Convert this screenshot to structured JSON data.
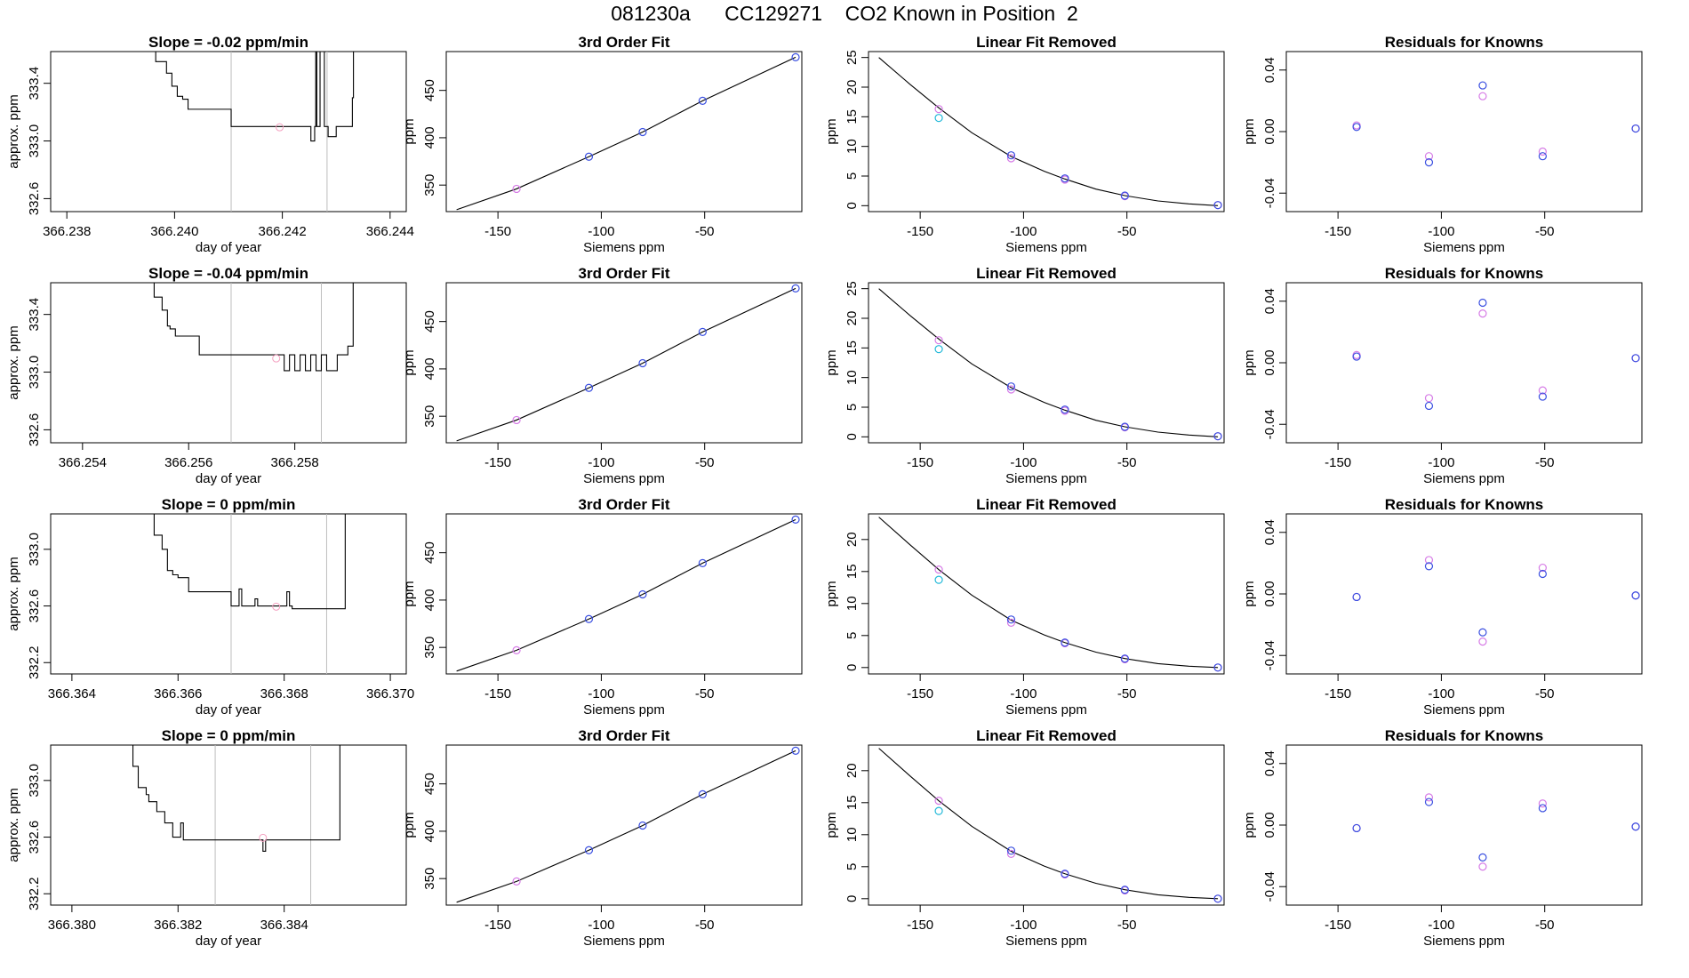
{
  "title": "081230a      CC129271    CO2 Known in Position  2",
  "colors": {
    "line": "#000000",
    "point_blue": "#3a4fe0",
    "point_cyan": "#20b8d8",
    "point_magenta": "#d67be6",
    "point_pink": "#f4a0c0",
    "vline": "#bdbdbd"
  },
  "chart_data": [
    {
      "type": "line",
      "title": "Slope =  -0.02  ppm/min",
      "xlabel": "day of year",
      "ylabel": "approx. ppm",
      "xlim": [
        366.2377,
        366.2443
      ],
      "ylim": [
        332.51,
        333.62
      ],
      "xticks": [
        "366.238",
        "366.240",
        "366.242",
        "366.244"
      ],
      "yticks": [
        "332.6",
        "333.0",
        "333.4"
      ],
      "vlines": [
        366.24105,
        366.24283
      ],
      "point": {
        "x": 366.24195,
        "y": 333.095
      },
      "x": [
        366.23958,
        366.23965,
        366.23985,
        366.23995,
        366.24005,
        366.24015,
        366.24025,
        366.24035,
        366.2405,
        366.24065,
        366.24085,
        366.24105,
        366.2412,
        366.2416,
        366.242,
        366.24225,
        366.2424,
        366.24245,
        366.24253,
        366.24258,
        366.2426,
        366.24262,
        366.24264,
        366.2427,
        366.24278,
        366.24285,
        366.243,
        366.2431,
        366.24325,
        366.2433,
        366.24332
      ],
      "y": [
        333.62,
        333.55,
        333.47,
        333.38,
        333.31,
        333.29,
        333.22,
        333.22,
        333.22,
        333.22,
        333.22,
        333.1,
        333.1,
        333.1,
        333.1,
        333.1,
        333.1,
        333.1,
        333.0,
        333.0,
        333.1,
        333.62,
        333.1,
        333.62,
        333.1,
        333.03,
        333.1,
        333.1,
        333.1,
        333.3,
        333.62
      ]
    },
    {
      "type": "line",
      "title": "Slope =  -0.04  ppm/min",
      "xlabel": "day of year",
      "ylabel": "approx. ppm",
      "xlim": [
        366.2534,
        366.2601
      ],
      "ylim": [
        332.51,
        333.62
      ],
      "xticks": [
        "366.254",
        "366.256",
        "366.258"
      ],
      "yticks": [
        "332.6",
        "333.0",
        "333.4"
      ],
      "vlines": [
        366.2568,
        366.2585
      ],
      "point": {
        "x": 366.25765,
        "y": 333.095
      },
      "x": [
        366.25525,
        366.25535,
        366.2555,
        366.2556,
        366.25565,
        366.25575,
        366.2559,
        366.25605,
        366.2562,
        366.2566,
        366.257,
        366.25765,
        366.2578,
        366.2579,
        366.258,
        366.2581,
        366.2582,
        366.2583,
        366.2584,
        366.2585,
        366.2586,
        366.2587,
        366.2588,
        366.2589,
        366.259,
        366.2591
      ],
      "y": [
        333.62,
        333.52,
        333.43,
        333.32,
        333.3,
        333.25,
        333.25,
        333.25,
        333.12,
        333.12,
        333.12,
        333.12,
        333.01,
        333.12,
        333.01,
        333.12,
        333.01,
        333.12,
        333.01,
        333.12,
        333.01,
        333.01,
        333.12,
        333.12,
        333.18,
        333.62
      ]
    },
    {
      "type": "line",
      "title": "Slope =  0  ppm/min",
      "xlabel": "day of year",
      "ylabel": "approx. ppm",
      "xlim": [
        366.3636,
        366.3703
      ],
      "ylim": [
        332.12,
        333.25
      ],
      "xticks": [
        "366.364",
        "366.366",
        "366.368",
        "366.370"
      ],
      "yticks": [
        "332.2",
        "332.6",
        "333.0"
      ],
      "vlines": [
        366.367,
        366.3688
      ],
      "point": {
        "x": 366.36785,
        "y": 332.595
      },
      "x": [
        366.36545,
        366.36555,
        366.3657,
        366.3658,
        366.3659,
        366.366,
        366.3662,
        366.3664,
        366.3666,
        366.367,
        366.3671,
        366.36715,
        366.3672,
        366.3674,
        366.36745,
        366.3675,
        366.368,
        366.36805,
        366.3681,
        366.36815,
        366.3685,
        366.369,
        366.3691,
        366.36915
      ],
      "y": [
        333.25,
        333.1,
        333.0,
        332.85,
        332.82,
        332.8,
        332.7,
        332.7,
        332.7,
        332.6,
        332.6,
        332.72,
        332.6,
        332.6,
        332.65,
        332.6,
        332.6,
        332.7,
        332.6,
        332.58,
        332.58,
        332.58,
        332.58,
        333.25
      ]
    },
    {
      "type": "line",
      "title": "Slope =  0  ppm/min",
      "xlabel": "day of year",
      "ylabel": "approx. ppm",
      "xlim": [
        366.3796,
        366.3863
      ],
      "ylim": [
        332.12,
        333.25
      ],
      "xticks": [
        "366.380",
        "366.382",
        "366.384"
      ],
      "yticks": [
        "332.2",
        "332.6",
        "333.0"
      ],
      "vlines": [
        366.3827,
        366.3845
      ],
      "point": {
        "x": 366.3836,
        "y": 332.595
      },
      "x": [
        366.38108,
        366.38115,
        366.38125,
        366.3814,
        366.38145,
        366.3816,
        366.38175,
        366.3819,
        366.382,
        366.38205,
        366.3821,
        366.38215,
        366.3825,
        366.3835,
        366.3836,
        366.38365,
        366.3837,
        366.384,
        366.3845,
        366.385,
        366.38505
      ],
      "y": [
        333.25,
        333.1,
        332.95,
        332.9,
        332.85,
        332.78,
        332.7,
        332.6,
        332.6,
        332.7,
        332.58,
        332.58,
        332.58,
        332.58,
        332.5,
        332.58,
        332.58,
        332.58,
        332.58,
        332.58,
        333.25
      ]
    },
    {
      "type": "scatter",
      "title": "3rd Order Fit",
      "xlabel": "Siemens ppm",
      "ylabel": "ppm",
      "xlim": [
        -175,
        -3
      ],
      "ylim": [
        322,
        491
      ],
      "xticks": [
        "-150",
        "-100",
        "-50"
      ],
      "yticks": [
        "350",
        "400",
        "450"
      ],
      "points": [
        [
          -141,
          346
        ],
        [
          -106,
          380
        ],
        [
          -80,
          406
        ],
        [
          -51,
          439
        ],
        [
          -6,
          485
        ]
      ],
      "curve_x": [
        -170,
        -141,
        -106,
        -80,
        -51,
        -6
      ],
      "curve_y": [
        324,
        346,
        380,
        406,
        439,
        485
      ]
    },
    {
      "type": "scatter",
      "title": "3rd Order Fit",
      "xlabel": "Siemens ppm",
      "ylabel": "ppm",
      "xlim": [
        -175,
        -3
      ],
      "ylim": [
        322,
        491
      ],
      "xticks": [
        "-150",
        "-100",
        "-50"
      ],
      "yticks": [
        "350",
        "400",
        "450"
      ],
      "points": [
        [
          -141,
          346
        ],
        [
          -106,
          380
        ],
        [
          -80,
          406
        ],
        [
          -51,
          439
        ],
        [
          -6,
          485
        ]
      ],
      "curve_x": [
        -170,
        -141,
        -106,
        -80,
        -51,
        -6
      ],
      "curve_y": [
        324,
        346,
        380,
        406,
        439,
        485
      ]
    },
    {
      "type": "scatter",
      "title": "3rd Order Fit",
      "xlabel": "Siemens ppm",
      "ylabel": "ppm",
      "xlim": [
        -175,
        -3
      ],
      "ylim": [
        322,
        491
      ],
      "xticks": [
        "-150",
        "-100",
        "-50"
      ],
      "yticks": [
        "350",
        "400",
        "450"
      ],
      "points": [
        [
          -141,
          347
        ],
        [
          -106,
          380
        ],
        [
          -80,
          406
        ],
        [
          -51,
          439
        ],
        [
          -6,
          485
        ]
      ],
      "curve_x": [
        -170,
        -141,
        -106,
        -80,
        -51,
        -6
      ],
      "curve_y": [
        325,
        347,
        380,
        406,
        439,
        485
      ]
    },
    {
      "type": "scatter",
      "title": "3rd Order Fit",
      "xlabel": "Siemens ppm",
      "ylabel": "ppm",
      "xlim": [
        -175,
        -3
      ],
      "ylim": [
        322,
        491
      ],
      "xticks": [
        "-150",
        "-100",
        "-50"
      ],
      "yticks": [
        "350",
        "400",
        "450"
      ],
      "points": [
        [
          -141,
          347
        ],
        [
          -106,
          380
        ],
        [
          -80,
          406
        ],
        [
          -51,
          439
        ],
        [
          -6,
          485
        ]
      ],
      "curve_x": [
        -170,
        -141,
        -106,
        -80,
        -51,
        -6
      ],
      "curve_y": [
        325,
        347,
        380,
        406,
        439,
        485
      ]
    },
    {
      "type": "scatter",
      "title": "Linear Fit Removed",
      "xlabel": "Siemens ppm",
      "ylabel": "ppm",
      "xlim": [
        -175,
        -3
      ],
      "ylim": [
        -1,
        26
      ],
      "xticks": [
        "-150",
        "-100",
        "-50"
      ],
      "yticks": [
        "0",
        "5",
        "10",
        "15",
        "20",
        "25"
      ],
      "points_blue": [
        [
          -106,
          8.5
        ],
        [
          -80,
          4.6
        ],
        [
          -51,
          1.7
        ],
        [
          -6,
          0.1
        ]
      ],
      "points_magenta": [
        [
          -141,
          16.3
        ],
        [
          -106,
          8.0
        ],
        [
          -80,
          4.4
        ],
        [
          -51,
          1.6
        ],
        [
          -6,
          0.1
        ]
      ],
      "points_cyan": [
        [
          -141,
          14.8
        ]
      ],
      "curve_x": [
        -170,
        -155,
        -141,
        -125,
        -106,
        -90,
        -80,
        -65,
        -51,
        -35,
        -20,
        -6
      ],
      "curve_y": [
        25.0,
        20.5,
        16.5,
        12.3,
        8.3,
        5.8,
        4.5,
        2.8,
        1.7,
        0.8,
        0.3,
        0.0
      ]
    },
    {
      "type": "scatter",
      "title": "Linear Fit Removed",
      "xlabel": "Siemens ppm",
      "ylabel": "ppm",
      "xlim": [
        -175,
        -3
      ],
      "ylim": [
        -1,
        26
      ],
      "xticks": [
        "-150",
        "-100",
        "-50"
      ],
      "yticks": [
        "0",
        "5",
        "10",
        "15",
        "20",
        "25"
      ],
      "points_blue": [
        [
          -106,
          8.5
        ],
        [
          -80,
          4.6
        ],
        [
          -51,
          1.7
        ],
        [
          -6,
          0.1
        ]
      ],
      "points_magenta": [
        [
          -141,
          16.3
        ],
        [
          -106,
          8.0
        ],
        [
          -80,
          4.4
        ],
        [
          -51,
          1.6
        ],
        [
          -6,
          0.1
        ]
      ],
      "points_cyan": [
        [
          -141,
          14.8
        ]
      ],
      "curve_x": [
        -170,
        -155,
        -141,
        -125,
        -106,
        -90,
        -80,
        -65,
        -51,
        -35,
        -20,
        -6
      ],
      "curve_y": [
        25.0,
        20.5,
        16.5,
        12.3,
        8.3,
        5.8,
        4.5,
        2.8,
        1.7,
        0.8,
        0.3,
        0.0
      ]
    },
    {
      "type": "scatter",
      "title": "Linear Fit Removed",
      "xlabel": "Siemens ppm",
      "ylabel": "ppm",
      "xlim": [
        -175,
        -3
      ],
      "ylim": [
        -1,
        24
      ],
      "xticks": [
        "-150",
        "-100",
        "-50"
      ],
      "yticks": [
        "0",
        "5",
        "10",
        "15",
        "20"
      ],
      "points_blue": [
        [
          -106,
          7.5
        ],
        [
          -80,
          3.9
        ],
        [
          -51,
          1.4
        ],
        [
          -6,
          0.0
        ]
      ],
      "points_magenta": [
        [
          -141,
          15.3
        ],
        [
          -106,
          7.0
        ],
        [
          -80,
          3.8
        ],
        [
          -51,
          1.3
        ],
        [
          -6,
          0.0
        ]
      ],
      "points_cyan": [
        [
          -141,
          13.7
        ]
      ],
      "curve_x": [
        -170,
        -155,
        -141,
        -125,
        -106,
        -90,
        -80,
        -65,
        -51,
        -35,
        -20,
        -6
      ],
      "curve_y": [
        23.5,
        19.2,
        15.3,
        11.3,
        7.4,
        5.1,
        3.9,
        2.4,
        1.4,
        0.6,
        0.2,
        0.0
      ]
    },
    {
      "type": "scatter",
      "title": "Linear Fit Removed",
      "xlabel": "Siemens ppm",
      "ylabel": "ppm",
      "xlim": [
        -175,
        -3
      ],
      "ylim": [
        -1,
        24
      ],
      "xticks": [
        "-150",
        "-100",
        "-50"
      ],
      "yticks": [
        "0",
        "5",
        "10",
        "15",
        "20"
      ],
      "points_blue": [
        [
          -106,
          7.5
        ],
        [
          -80,
          3.9
        ],
        [
          -51,
          1.4
        ],
        [
          -6,
          0.0
        ]
      ],
      "points_magenta": [
        [
          -141,
          15.3
        ],
        [
          -106,
          7.0
        ],
        [
          -80,
          3.8
        ],
        [
          -51,
          1.3
        ],
        [
          -6,
          0.0
        ]
      ],
      "points_cyan": [
        [
          -141,
          13.7
        ]
      ],
      "curve_x": [
        -170,
        -155,
        -141,
        -125,
        -106,
        -90,
        -80,
        -65,
        -51,
        -35,
        -20,
        -6
      ],
      "curve_y": [
        23.5,
        19.2,
        15.3,
        11.3,
        7.4,
        5.1,
        3.9,
        2.4,
        1.4,
        0.6,
        0.2,
        0.0
      ]
    },
    {
      "type": "scatter",
      "title": "Residuals for Knowns",
      "xlabel": "Siemens ppm",
      "ylabel": "ppm",
      "xlim": [
        -175,
        -3
      ],
      "ylim": [
        -0.052,
        0.052
      ],
      "xticks": [
        "-150",
        "-100",
        "-50"
      ],
      "yticks": [
        "-0.04",
        "0.00",
        "0.04"
      ],
      "points_blue": [
        [
          -141,
          0.003
        ],
        [
          -106,
          -0.02
        ],
        [
          -80,
          0.03
        ],
        [
          -51,
          -0.016
        ],
        [
          -6,
          0.002
        ]
      ],
      "points_magenta": [
        [
          -141,
          0.004
        ],
        [
          -106,
          -0.016
        ],
        [
          -80,
          0.023
        ],
        [
          -51,
          -0.013
        ],
        [
          -6,
          0.002
        ]
      ]
    },
    {
      "type": "scatter",
      "title": "Residuals for Knowns",
      "xlabel": "Siemens ppm",
      "ylabel": "ppm",
      "xlim": [
        -175,
        -3
      ],
      "ylim": [
        -0.052,
        0.052
      ],
      "xticks": [
        "-150",
        "-100",
        "-50"
      ],
      "yticks": [
        "-0.04",
        "0.00",
        "0.04"
      ],
      "points_blue": [
        [
          -141,
          0.004
        ],
        [
          -106,
          -0.028
        ],
        [
          -80,
          0.039
        ],
        [
          -51,
          -0.022
        ],
        [
          -6,
          0.003
        ]
      ],
      "points_magenta": [
        [
          -141,
          0.005
        ],
        [
          -106,
          -0.023
        ],
        [
          -80,
          0.032
        ],
        [
          -51,
          -0.018
        ],
        [
          -6,
          0.003
        ]
      ]
    },
    {
      "type": "scatter",
      "title": "Residuals for Knowns",
      "xlabel": "Siemens ppm",
      "ylabel": "ppm",
      "xlim": [
        -175,
        -3
      ],
      "ylim": [
        -0.052,
        0.052
      ],
      "xticks": [
        "-150",
        "-100",
        "-50"
      ],
      "yticks": [
        "-0.04",
        "0.00",
        "0.04"
      ],
      "points_blue": [
        [
          -141,
          -0.002
        ],
        [
          -106,
          0.018
        ],
        [
          -80,
          -0.025
        ],
        [
          -51,
          0.013
        ],
        [
          -6,
          -0.001
        ]
      ],
      "points_magenta": [
        [
          -141,
          -0.002
        ],
        [
          -106,
          0.022
        ],
        [
          -80,
          -0.031
        ],
        [
          -51,
          0.017
        ],
        [
          -6,
          -0.001
        ]
      ]
    },
    {
      "type": "scatter",
      "title": "Residuals for Knowns",
      "xlabel": "Siemens ppm",
      "ylabel": "ppm",
      "xlim": [
        -175,
        -3
      ],
      "ylim": [
        -0.052,
        0.052
      ],
      "xticks": [
        "-150",
        "-100",
        "-50"
      ],
      "yticks": [
        "-0.04",
        "0.00",
        "0.04"
      ],
      "points_blue": [
        [
          -141,
          -0.002
        ],
        [
          -106,
          0.015
        ],
        [
          -80,
          -0.021
        ],
        [
          -51,
          0.011
        ],
        [
          -6,
          -0.001
        ]
      ],
      "points_magenta": [
        [
          -141,
          -0.002
        ],
        [
          -106,
          0.018
        ],
        [
          -80,
          -0.027
        ],
        [
          -51,
          0.014
        ],
        [
          -6,
          -0.001
        ]
      ]
    }
  ]
}
